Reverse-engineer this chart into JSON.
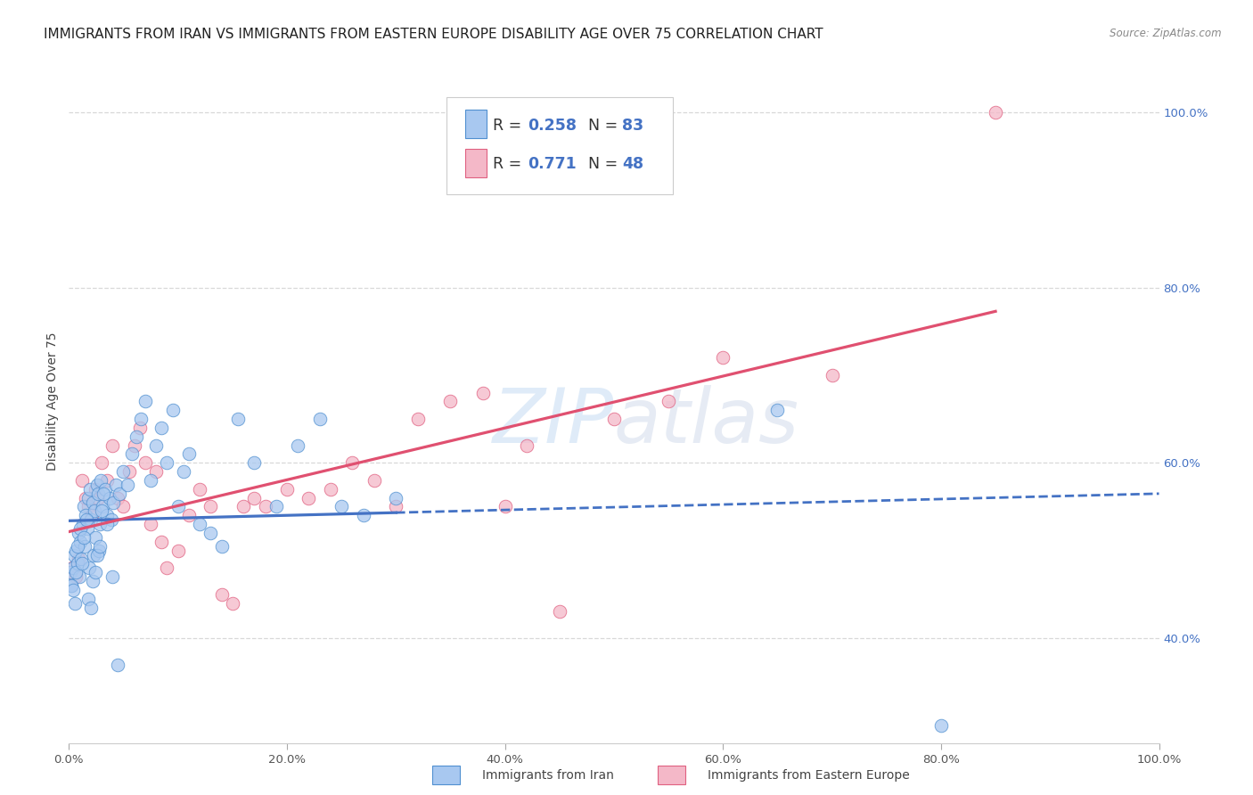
{
  "title": "IMMIGRANTS FROM IRAN VS IMMIGRANTS FROM EASTERN EUROPE DISABILITY AGE OVER 75 CORRELATION CHART",
  "source": "Source: ZipAtlas.com",
  "ylabel": "Disability Age Over 75",
  "iran_color": "#a8c8f0",
  "iran_edge_color": "#5090d0",
  "ee_color": "#f4b8c8",
  "ee_edge_color": "#e06080",
  "iran_line_color": "#4472c4",
  "ee_line_color": "#e05070",
  "background_color": "#ffffff",
  "grid_color": "#d8d8d8",
  "iran_R": "0.258",
  "iran_N": "83",
  "ee_R": "0.771",
  "ee_N": "48",
  "iran_x": [
    0.15,
    0.25,
    0.35,
    0.45,
    0.55,
    0.65,
    0.75,
    0.85,
    0.95,
    1.05,
    1.15,
    1.25,
    1.35,
    1.45,
    1.55,
    1.65,
    1.75,
    1.85,
    1.95,
    2.05,
    2.15,
    2.25,
    2.35,
    2.45,
    2.55,
    2.65,
    2.75,
    2.85,
    2.95,
    3.1,
    3.3,
    3.5,
    3.7,
    3.9,
    4.1,
    4.3,
    4.6,
    5.0,
    5.4,
    5.8,
    6.2,
    6.6,
    7.0,
    7.5,
    8.0,
    8.5,
    9.0,
    9.5,
    10.0,
    10.5,
    11.0,
    12.0,
    13.0,
    14.0,
    15.5,
    17.0,
    19.0,
    21.0,
    23.0,
    25.0,
    27.0,
    30.0,
    65.0,
    80.0,
    0.2,
    0.4,
    0.6,
    0.8,
    1.0,
    1.2,
    1.4,
    1.6,
    1.8,
    2.0,
    2.2,
    2.4,
    2.6,
    2.8,
    3.0,
    3.2,
    3.5,
    4.0,
    4.5
  ],
  "iran_y": [
    47.5,
    46.0,
    48.0,
    49.5,
    44.0,
    50.0,
    48.5,
    52.0,
    47.0,
    51.0,
    49.0,
    53.0,
    55.0,
    50.5,
    54.0,
    52.5,
    56.0,
    48.0,
    57.0,
    53.5,
    55.5,
    49.5,
    54.5,
    51.5,
    57.5,
    56.5,
    50.0,
    53.0,
    58.0,
    55.0,
    57.0,
    54.0,
    56.0,
    53.5,
    55.5,
    57.5,
    56.5,
    59.0,
    57.5,
    61.0,
    63.0,
    65.0,
    67.0,
    58.0,
    62.0,
    64.0,
    60.0,
    66.0,
    55.0,
    59.0,
    61.0,
    53.0,
    52.0,
    50.5,
    65.0,
    60.0,
    55.0,
    62.0,
    65.0,
    55.0,
    54.0,
    56.0,
    66.0,
    30.0,
    46.0,
    45.5,
    47.5,
    50.5,
    52.5,
    48.5,
    51.5,
    53.5,
    44.5,
    43.5,
    46.5,
    47.5,
    49.5,
    50.5,
    54.5,
    56.5,
    53.0,
    47.0,
    37.0
  ],
  "ee_x": [
    0.3,
    0.6,
    0.9,
    1.2,
    1.5,
    1.8,
    2.1,
    2.4,
    2.7,
    3.0,
    3.5,
    4.0,
    4.5,
    5.0,
    5.5,
    6.0,
    6.5,
    7.0,
    7.5,
    8.0,
    8.5,
    9.0,
    10.0,
    11.0,
    12.0,
    13.0,
    14.0,
    15.0,
    16.0,
    17.0,
    18.0,
    20.0,
    22.0,
    24.0,
    26.0,
    28.0,
    30.0,
    32.0,
    35.0,
    38.0,
    40.0,
    42.0,
    45.0,
    50.0,
    55.0,
    60.0,
    70.0,
    85.0
  ],
  "ee_y": [
    48.0,
    47.0,
    49.0,
    58.0,
    56.0,
    55.0,
    54.0,
    57.0,
    56.0,
    60.0,
    58.0,
    62.0,
    56.0,
    55.0,
    59.0,
    62.0,
    64.0,
    60.0,
    53.0,
    59.0,
    51.0,
    48.0,
    50.0,
    54.0,
    57.0,
    55.0,
    45.0,
    44.0,
    55.0,
    56.0,
    55.0,
    57.0,
    56.0,
    57.0,
    60.0,
    58.0,
    55.0,
    65.0,
    67.0,
    68.0,
    55.0,
    62.0,
    43.0,
    65.0,
    67.0,
    72.0,
    70.0,
    100.0
  ],
  "xlim": [
    0,
    100
  ],
  "ylim": [
    28,
    106
  ],
  "yticks": [
    40,
    60,
    80,
    100
  ],
  "xticks": [
    0,
    20,
    40,
    60,
    80,
    100
  ],
  "title_fontsize": 11,
  "axis_label_fontsize": 10,
  "tick_fontsize": 9.5
}
